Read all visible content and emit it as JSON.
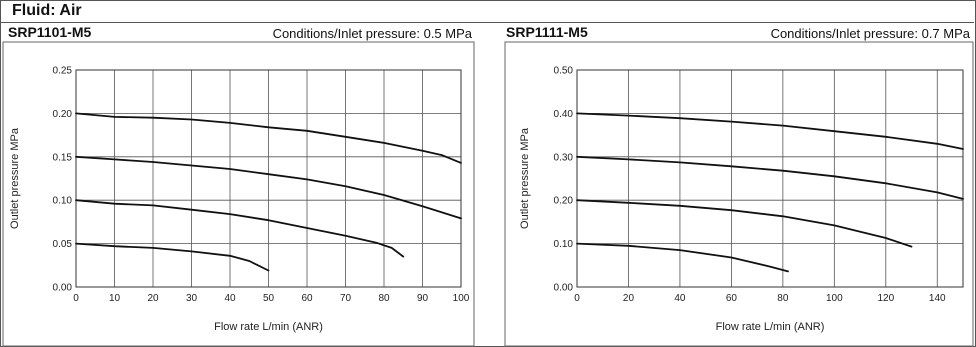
{
  "fluid_label": "Fluid:  Air",
  "panels": [
    {
      "model": "SRP1101-M5",
      "conditions": "Conditions/Inlet pressure: 0.5 MPa"
    },
    {
      "model": "SRP1111-M5",
      "conditions": "Conditions/Inlet pressure: 0.7 MPa"
    }
  ],
  "chart_data": [
    {
      "type": "line",
      "title": "SRP1101-M5",
      "subtitle": "Conditions/Inlet pressure: 0.5 MPa",
      "xlabel": "Flow rate  L/min (ANR)",
      "ylabel": "Outlet pressure  MPa",
      "xlim": [
        0,
        100
      ],
      "ylim": [
        0,
        0.25
      ],
      "xticks": [
        0,
        10,
        20,
        30,
        40,
        50,
        60,
        70,
        80,
        90,
        100
      ],
      "yticks": [
        "0.00",
        "0.05",
        "0.10",
        "0.15",
        "0.20",
        "0.25"
      ],
      "grid": true,
      "line_color": "#111111",
      "series": [
        {
          "points": [
            [
              0,
              0.2
            ],
            [
              10,
              0.196
            ],
            [
              20,
              0.195
            ],
            [
              30,
              0.193
            ],
            [
              40,
              0.189
            ],
            [
              50,
              0.184
            ],
            [
              60,
              0.18
            ],
            [
              70,
              0.173
            ],
            [
              80,
              0.166
            ],
            [
              90,
              0.157
            ],
            [
              95,
              0.152
            ],
            [
              100,
              0.143
            ]
          ]
        },
        {
          "points": [
            [
              0,
              0.15
            ],
            [
              10,
              0.147
            ],
            [
              20,
              0.144
            ],
            [
              30,
              0.14
            ],
            [
              40,
              0.136
            ],
            [
              50,
              0.13
            ],
            [
              60,
              0.124
            ],
            [
              70,
              0.116
            ],
            [
              80,
              0.106
            ],
            [
              90,
              0.093
            ],
            [
              100,
              0.079
            ]
          ]
        },
        {
          "points": [
            [
              0,
              0.1
            ],
            [
              10,
              0.096
            ],
            [
              20,
              0.094
            ],
            [
              30,
              0.089
            ],
            [
              40,
              0.084
            ],
            [
              50,
              0.077
            ],
            [
              60,
              0.068
            ],
            [
              70,
              0.059
            ],
            [
              78,
              0.051
            ],
            [
              82,
              0.045
            ],
            [
              85,
              0.035
            ]
          ]
        },
        {
          "points": [
            [
              0,
              0.05
            ],
            [
              10,
              0.047
            ],
            [
              20,
              0.045
            ],
            [
              30,
              0.041
            ],
            [
              40,
              0.036
            ],
            [
              45,
              0.03
            ],
            [
              50,
              0.019
            ]
          ]
        }
      ]
    },
    {
      "type": "line",
      "title": "SRP1111-M5",
      "subtitle": "Conditions/Inlet pressure: 0.7 MPa",
      "xlabel": "Flow rate  L/min (ANR)",
      "ylabel": "Outlet pressure  MPa",
      "xlim": [
        0,
        150
      ],
      "ylim": [
        0,
        0.5
      ],
      "xticks": [
        0,
        20,
        40,
        60,
        80,
        100,
        120,
        140
      ],
      "yticks": [
        "0.00",
        "0.10",
        "0.20",
        "0.30",
        "0.40",
        "0.50"
      ],
      "grid": true,
      "line_color": "#111111",
      "series": [
        {
          "points": [
            [
              0,
              0.4
            ],
            [
              20,
              0.395
            ],
            [
              40,
              0.389
            ],
            [
              60,
              0.381
            ],
            [
              80,
              0.372
            ],
            [
              100,
              0.359
            ],
            [
              120,
              0.346
            ],
            [
              140,
              0.33
            ],
            [
              150,
              0.318
            ]
          ]
        },
        {
          "points": [
            [
              0,
              0.3
            ],
            [
              20,
              0.294
            ],
            [
              40,
              0.287
            ],
            [
              60,
              0.278
            ],
            [
              80,
              0.268
            ],
            [
              100,
              0.255
            ],
            [
              120,
              0.239
            ],
            [
              140,
              0.218
            ],
            [
              150,
              0.203
            ]
          ]
        },
        {
          "points": [
            [
              0,
              0.2
            ],
            [
              20,
              0.194
            ],
            [
              40,
              0.187
            ],
            [
              60,
              0.177
            ],
            [
              80,
              0.163
            ],
            [
              100,
              0.142
            ],
            [
              120,
              0.113
            ],
            [
              130,
              0.093
            ]
          ]
        },
        {
          "points": [
            [
              0,
              0.1
            ],
            [
              20,
              0.095
            ],
            [
              40,
              0.085
            ],
            [
              60,
              0.068
            ],
            [
              75,
              0.047
            ],
            [
              82,
              0.036
            ]
          ]
        }
      ]
    }
  ]
}
